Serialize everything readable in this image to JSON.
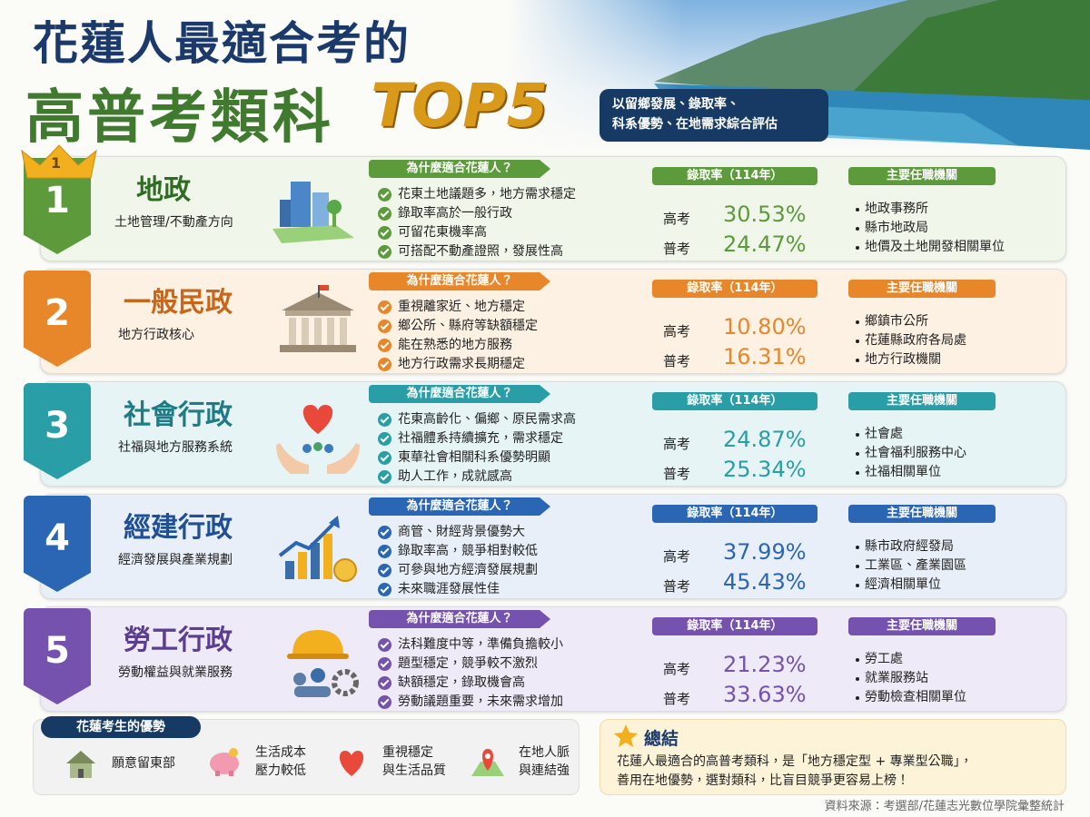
{
  "header": {
    "title_line1": "花蓮人最適合考的",
    "title_line2": "高普考類科",
    "title_accent": "TOP5",
    "badge": [
      "以留鄉發展、錄取率、",
      "科系優勢、在地需求綜合評估"
    ]
  },
  "ranks": [
    {
      "rank": "1",
      "name": "地政",
      "subtitle": "土地管理/不動產方向",
      "why_title": "為什麼適合花蓮人？",
      "reasons": [
        "花東土地議題多，地方需求穩定",
        "錄取率高於一般行政",
        "可留花東機率高",
        "可搭配不動產證照，發展性高"
      ],
      "rate_title": "錄取率（114年）",
      "rates": [
        {
          "label": "高考",
          "value": "30.53%"
        },
        {
          "label": "普考",
          "value": "24.47%"
        }
      ],
      "agencies_title": "主要任職機關",
      "agencies": [
        "地政事務所",
        "縣市地政局",
        "地價及土地開發相關單位"
      ]
    },
    {
      "rank": "2",
      "name": "一般民政",
      "subtitle": "地方行政核心",
      "why_title": "為什麼適合花蓮人？",
      "reasons": [
        "重視離家近、地方穩定",
        "鄉公所、縣府等缺額穩定",
        "能在熟悉的地方服務",
        "地方行政需求長期穩定"
      ],
      "rate_title": "錄取率（114年）",
      "rates": [
        {
          "label": "高考",
          "value": "10.80%"
        },
        {
          "label": "普考",
          "value": "16.31%"
        }
      ],
      "agencies_title": "主要任職機關",
      "agencies": [
        "鄉鎮市公所",
        "花蓮縣政府各局處",
        "地方行政機關"
      ]
    },
    {
      "rank": "3",
      "name": "社會行政",
      "subtitle": "社福與地方服務系統",
      "why_title": "為什麼適合花蓮人？",
      "reasons": [
        "花東高齡化、偏鄉、原民需求高",
        "社福體系持續擴充，需求穩定",
        "東華社會相關科系優勢明顯",
        "助人工作，成就感高"
      ],
      "rate_title": "錄取率（114年）",
      "rates": [
        {
          "label": "高考",
          "value": "24.87%"
        },
        {
          "label": "普考",
          "value": "25.34%"
        }
      ],
      "agencies_title": "主要任職機關",
      "agencies": [
        "社會處",
        "社會福利服務中心",
        "社福相關單位"
      ]
    },
    {
      "rank": "4",
      "name": "經建行政",
      "subtitle": "經濟發展與產業規劃",
      "why_title": "為什麼適合花蓮人？",
      "reasons": [
        "商管、財經背景優勢大",
        "錄取率高，競爭相對較低",
        "可參與地方經濟發展規劃",
        "未來職涯發展性佳"
      ],
      "rate_title": "錄取率（114年）",
      "rates": [
        {
          "label": "高考",
          "value": "37.99%"
        },
        {
          "label": "普考",
          "value": "45.43%"
        }
      ],
      "agencies_title": "主要任職機關",
      "agencies": [
        "縣市政府經發局",
        "工業區、產業園區",
        "經濟相關單位"
      ]
    },
    {
      "rank": "5",
      "name": "勞工行政",
      "subtitle": "勞動權益與就業服務",
      "why_title": "為什麼適合花蓮人？",
      "reasons": [
        "法科難度中等，準備負擔較小",
        "題型穩定，競爭較不激烈",
        "缺額穩定，錄取機會高",
        "勞動議題重要，未來需求增加"
      ],
      "rate_title": "錄取率（114年）",
      "rates": [
        {
          "label": "高考",
          "value": "21.23%"
        },
        {
          "label": "普考",
          "value": "33.63%"
        }
      ],
      "agencies_title": "主要任職機關",
      "agencies": [
        "勞工處",
        "就業服務站",
        "勞動檢查相關單位"
      ]
    }
  ],
  "advantages": {
    "title": "花蓮考生的優勢",
    "items": [
      [
        "願意留東部"
      ],
      [
        "生活成本",
        "壓力較低"
      ],
      [
        "重視穩定",
        "與生活品質"
      ],
      [
        "在地人脈",
        "與連結強"
      ]
    ]
  },
  "summary": {
    "title": "總結",
    "lines": [
      "花蓮人最適合的高普考類科，是「地方穩定型 + 專業型公職」，",
      "善用在地優勢，選對類科，比盲目競爭更容易上榜！"
    ]
  },
  "source": "資料來源：考選部/花蓮志光數位學院彙整統計"
}
